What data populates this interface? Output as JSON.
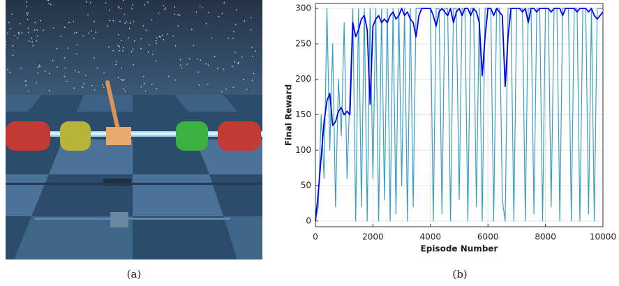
{
  "captions": [
    "(a)",
    "(b)"
  ],
  "chart_data": {
    "type": "line",
    "xlabel": "Episode Number",
    "ylabel": "Final Reward",
    "x": [
      0,
      100,
      200,
      300,
      400,
      500,
      600,
      700,
      800,
      900,
      1000,
      1100,
      1200,
      1300,
      1400,
      1500,
      1600,
      1700,
      1800,
      1900,
      2000,
      2100,
      2200,
      2300,
      2400,
      2500,
      2600,
      2700,
      2800,
      2900,
      3000,
      3100,
      3200,
      3300,
      3400,
      3500,
      3600,
      3700,
      3800,
      3900,
      4000,
      4100,
      4200,
      4300,
      4400,
      4500,
      4600,
      4700,
      4800,
      4900,
      5000,
      5100,
      5200,
      5300,
      5400,
      5500,
      5600,
      5700,
      5800,
      5900,
      6000,
      6100,
      6200,
      6300,
      6400,
      6500,
      6600,
      6700,
      6800,
      6900,
      7000,
      7100,
      7200,
      7300,
      7400,
      7500,
      7600,
      7700,
      7800,
      7900,
      8000,
      8100,
      8200,
      8300,
      8400,
      8500,
      8600,
      8700,
      8800,
      8900,
      9000,
      9100,
      9200,
      9300,
      9400,
      9500,
      9600,
      9700,
      9800,
      9900,
      10000
    ],
    "series": [
      {
        "color": "#3a9ec4",
        "values": [
          0,
          20,
          150,
          60,
          300,
          100,
          250,
          20,
          200,
          120,
          280,
          60,
          180,
          300,
          0,
          300,
          20,
          300,
          0,
          300,
          60,
          300,
          0,
          300,
          30,
          300,
          0,
          300,
          10,
          300,
          50,
          300,
          0,
          300,
          20,
          300,
          300,
          300,
          300,
          300,
          300,
          0,
          300,
          300,
          10,
          300,
          300,
          0,
          300,
          300,
          30,
          300,
          300,
          0,
          300,
          300,
          20,
          300,
          0,
          300,
          300,
          300,
          0,
          300,
          300,
          30,
          0,
          300,
          300,
          0,
          300,
          300,
          300,
          0,
          300,
          300,
          10,
          300,
          300,
          0,
          300,
          300,
          20,
          300,
          300,
          0,
          300,
          300,
          300,
          0,
          300,
          300,
          0,
          300,
          300,
          10,
          300,
          0,
          300,
          300,
          300
        ]
      },
      {
        "color": "#0000ee",
        "values": [
          0,
          40,
          90,
          140,
          170,
          180,
          135,
          140,
          155,
          160,
          150,
          155,
          150,
          280,
          260,
          270,
          285,
          290,
          270,
          165,
          275,
          285,
          290,
          280,
          285,
          280,
          290,
          295,
          285,
          290,
          300,
          290,
          295,
          285,
          280,
          260,
          290,
          300,
          300,
          300,
          300,
          290,
          275,
          295,
          300,
          295,
          290,
          300,
          280,
          295,
          300,
          290,
          300,
          300,
          290,
          300,
          295,
          280,
          205,
          260,
          300,
          300,
          290,
          300,
          295,
          290,
          190,
          260,
          300,
          300,
          300,
          300,
          295,
          300,
          280,
          300,
          300,
          295,
          300,
          300,
          300,
          300,
          295,
          300,
          300,
          300,
          290,
          300,
          300,
          300,
          300,
          295,
          300,
          300,
          300,
          295,
          300,
          290,
          285,
          290,
          295
        ]
      }
    ],
    "xlim": [
      0,
      10000
    ],
    "xticks": [
      0,
      2000,
      4000,
      6000,
      8000,
      10000
    ],
    "ylim": [
      -8,
      307
    ],
    "yticks": [
      0,
      50,
      100,
      150,
      200,
      250,
      300
    ],
    "grid": true
  }
}
